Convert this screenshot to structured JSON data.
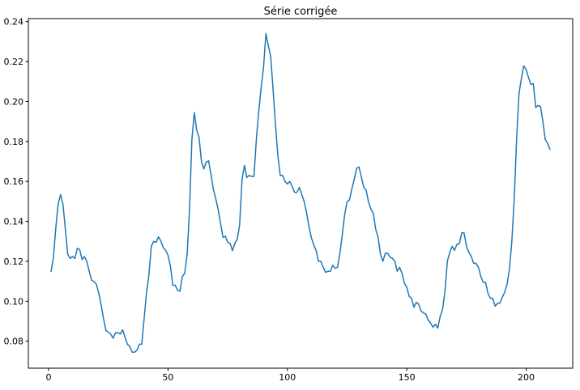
{
  "chart_data": {
    "type": "line",
    "title": "Série corrigée",
    "xlabel": "",
    "ylabel": "",
    "xlim": [
      -8.5,
      219.5
    ],
    "ylim": [
      0.0665,
      0.2415
    ],
    "xticks": [
      0,
      50,
      100,
      150,
      200
    ],
    "yticks": [
      0.08,
      0.1,
      0.12,
      0.14,
      0.16,
      0.18,
      0.2,
      0.22,
      0.24
    ],
    "xtick_labels": [
      "0",
      "50",
      "100",
      "150",
      "200"
    ],
    "ytick_labels": [
      "0.08",
      "0.10",
      "0.12",
      "0.14",
      "0.16",
      "0.18",
      "0.20",
      "0.22",
      "0.24"
    ],
    "grid": false,
    "line_color": "#1f77b4",
    "x_start": 1,
    "values": [
      0.1148,
      0.1218,
      0.1368,
      0.1489,
      0.1534,
      0.1485,
      0.1361,
      0.1236,
      0.1214,
      0.1224,
      0.1214,
      0.1265,
      0.1259,
      0.1209,
      0.1224,
      0.1199,
      0.115,
      0.1105,
      0.1099,
      0.1085,
      0.104,
      0.0982,
      0.0911,
      0.0854,
      0.0845,
      0.0835,
      0.0815,
      0.0842,
      0.0843,
      0.0836,
      0.0857,
      0.0819,
      0.0785,
      0.0773,
      0.0745,
      0.0745,
      0.0755,
      0.0785,
      0.0785,
      0.0914,
      0.1042,
      0.1133,
      0.1275,
      0.13,
      0.1295,
      0.1322,
      0.1302,
      0.1268,
      0.1255,
      0.123,
      0.1177,
      0.108,
      0.108,
      0.1055,
      0.105,
      0.1124,
      0.114,
      0.1234,
      0.1458,
      0.181,
      0.1945,
      0.1857,
      0.182,
      0.17,
      0.1662,
      0.1697,
      0.1703,
      0.1634,
      0.156,
      0.1513,
      0.146,
      0.139,
      0.132,
      0.1325,
      0.1295,
      0.129,
      0.1253,
      0.129,
      0.131,
      0.1383,
      0.161,
      0.168,
      0.162,
      0.163,
      0.1625,
      0.1625,
      0.181,
      0.195,
      0.207,
      0.217,
      0.234,
      0.228,
      0.2225,
      0.206,
      0.1885,
      0.173,
      0.163,
      0.163,
      0.16,
      0.1587,
      0.16,
      0.1575,
      0.1545,
      0.1545,
      0.157,
      0.1535,
      0.15,
      0.1445,
      0.1375,
      0.132,
      0.1283,
      0.1255,
      0.12,
      0.12,
      0.117,
      0.1145,
      0.115,
      0.115,
      0.118,
      0.1165,
      0.117,
      0.124,
      0.1335,
      0.1435,
      0.1498,
      0.1507,
      0.1563,
      0.161,
      0.1665,
      0.1672,
      0.162,
      0.157,
      0.1555,
      0.1495,
      0.146,
      0.144,
      0.136,
      0.132,
      0.1235,
      0.12,
      0.124,
      0.124,
      0.122,
      0.1215,
      0.12,
      0.115,
      0.117,
      0.114,
      0.109,
      0.107,
      0.1025,
      0.1015,
      0.097,
      0.0995,
      0.0985,
      0.095,
      0.0942,
      0.0935,
      0.0905,
      0.089,
      0.087,
      0.0885,
      0.0865,
      0.0925,
      0.096,
      0.105,
      0.12,
      0.1245,
      0.1275,
      0.1255,
      0.1285,
      0.1287,
      0.1342,
      0.1342,
      0.1275,
      0.1245,
      0.1225,
      0.119,
      0.119,
      0.117,
      0.1125,
      0.1095,
      0.1095,
      0.104,
      0.1015,
      0.1015,
      0.0975,
      0.099,
      0.099,
      0.102,
      0.1045,
      0.1085,
      0.116,
      0.13,
      0.151,
      0.181,
      0.204,
      0.2115,
      0.2178,
      0.216,
      0.212,
      0.2085,
      0.209,
      0.197,
      0.198,
      0.1975,
      0.19,
      0.181,
      0.179,
      0.176
    ]
  }
}
